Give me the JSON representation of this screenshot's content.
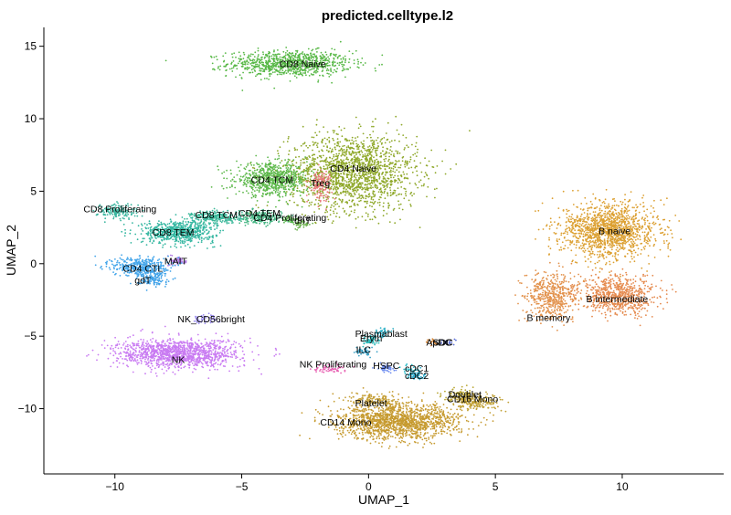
{
  "chart_data": {
    "type": "scatter",
    "title": "predicted.celltype.l2",
    "xlabel": "UMAP_1",
    "ylabel": "UMAP_2",
    "xlim": [
      -12.8,
      14
    ],
    "ylim": [
      -14.5,
      16.3
    ],
    "xticks": [
      -10,
      -5,
      0,
      5,
      10
    ],
    "xtick_labels": [
      "−10",
      "−5",
      "0",
      "5",
      "10"
    ],
    "yticks": [
      -10,
      -5,
      0,
      5,
      10,
      15
    ],
    "ytick_labels": [
      "−10",
      "−5",
      "0",
      "5",
      "10",
      "15"
    ],
    "grid": false,
    "legend": "none",
    "clusters": [
      {
        "name": "CD8 Naive",
        "x": -3.1,
        "y": 13.8,
        "sx": 2.2,
        "sy": 0.8,
        "n": 900,
        "color": "#58b847"
      },
      {
        "name": "CD4 Naive",
        "x": -0.6,
        "y": 6.3,
        "sx": 2.3,
        "sy": 2.4,
        "n": 1700,
        "color": "#8fa82a"
      },
      {
        "name": "CD4 TCM",
        "x": -3.8,
        "y": 5.8,
        "sx": 1.3,
        "sy": 1.0,
        "n": 700,
        "color": "#5db84b"
      },
      {
        "name": "Treg",
        "x": -1.9,
        "y": 5.5,
        "sx": 0.4,
        "sy": 0.9,
        "n": 140,
        "color": "#e8797a"
      },
      {
        "name": "CD8 Proliferating",
        "x": -9.9,
        "y": 3.6,
        "sx": 0.7,
        "sy": 0.5,
        "n": 160,
        "color": "#3cb6a0"
      },
      {
        "name": "CD8 TCM",
        "x": -6.0,
        "y": 3.2,
        "sx": 0.9,
        "sy": 0.4,
        "n": 240,
        "color": "#3bb89a"
      },
      {
        "name": "CD4 TEM",
        "x": -4.3,
        "y": 3.2,
        "sx": 0.8,
        "sy": 0.4,
        "n": 220,
        "color": "#44b582"
      },
      {
        "name": "CD4 Proliferating",
        "x": -3.1,
        "y": 3.0,
        "sx": 0.3,
        "sy": 0.3,
        "n": 40,
        "color": "#58b44d"
      },
      {
        "name": "dnT",
        "x": -2.6,
        "y": 2.7,
        "sx": 0.3,
        "sy": 0.3,
        "n": 40,
        "color": "#6ab04c"
      },
      {
        "name": "CD8 TEM",
        "x": -7.5,
        "y": 2.2,
        "sx": 1.3,
        "sy": 0.7,
        "n": 650,
        "color": "#33b6a0"
      },
      {
        "name": "MAIT",
        "x": -7.5,
        "y": 0.2,
        "sx": 0.3,
        "sy": 0.3,
        "n": 60,
        "color": "#b47ee6"
      },
      {
        "name": "CD4 CTL",
        "x": -9.0,
        "y": -0.2,
        "sx": 1.0,
        "sy": 0.6,
        "n": 400,
        "color": "#45a6ea"
      },
      {
        "name": "gdT",
        "x": -8.5,
        "y": -1.0,
        "sx": 0.6,
        "sy": 0.5,
        "n": 120,
        "color": "#3ea1e8"
      },
      {
        "name": "NK_CD56bright",
        "x": -6.5,
        "y": -3.8,
        "sx": 0.5,
        "sy": 0.3,
        "n": 50,
        "color": "#9b8df0"
      },
      {
        "name": "NK",
        "x": -7.5,
        "y": -6.2,
        "sx": 2.2,
        "sy": 0.9,
        "n": 1300,
        "color": "#c97bf2"
      },
      {
        "name": "Plasmablast",
        "x": 0.5,
        "y": -4.8,
        "sx": 0.3,
        "sy": 0.3,
        "n": 50,
        "color": "#35b3c9"
      },
      {
        "name": "Eryth",
        "x": 0.1,
        "y": -5.3,
        "sx": 0.3,
        "sy": 0.3,
        "n": 50,
        "color": "#27b8b8"
      },
      {
        "name": "ILC",
        "x": -0.2,
        "y": -6.1,
        "sx": 0.3,
        "sy": 0.3,
        "n": 40,
        "color": "#3ba2c6"
      },
      {
        "name": "ASDC",
        "x": 2.5,
        "y": -5.4,
        "sx": 0.2,
        "sy": 0.2,
        "n": 20,
        "color": "#d27f2d"
      },
      {
        "name": "pDC",
        "x": 3.1,
        "y": -5.4,
        "sx": 0.2,
        "sy": 0.2,
        "n": 20,
        "color": "#5a6fd8"
      },
      {
        "name": "NK Proliferating",
        "x": -1.5,
        "y": -7.2,
        "sx": 0.6,
        "sy": 0.3,
        "n": 60,
        "color": "#e862b3"
      },
      {
        "name": "HSPC",
        "x": 0.7,
        "y": -7.2,
        "sx": 0.3,
        "sy": 0.3,
        "n": 50,
        "color": "#6d8cf0"
      },
      {
        "name": "cDC1",
        "x": 1.7,
        "y": -7.3,
        "sx": 0.3,
        "sy": 0.3,
        "n": 30,
        "color": "#1fb7c4"
      },
      {
        "name": "cDC2",
        "x": 1.9,
        "y": -7.7,
        "sx": 0.3,
        "sy": 0.3,
        "n": 50,
        "color": "#30aed0"
      },
      {
        "name": "Platelet",
        "x": 0.2,
        "y": -9.4,
        "sx": 1.0,
        "sy": 0.4,
        "n": 160,
        "color": "#c6a13a"
      },
      {
        "name": "Doublet",
        "x": 3.6,
        "y": -9.0,
        "sx": 0.6,
        "sy": 0.4,
        "n": 80,
        "color": "#b8a530"
      },
      {
        "name": "CD16 Mono",
        "x": 4.2,
        "y": -9.5,
        "sx": 0.9,
        "sy": 0.5,
        "n": 220,
        "color": "#c1a136"
      },
      {
        "name": "CD14 Mono",
        "x": 1.2,
        "y": -10.9,
        "sx": 2.2,
        "sy": 1.1,
        "n": 1500,
        "color": "#c69a2f"
      },
      {
        "name": "B naive",
        "x": 9.5,
        "y": 2.3,
        "sx": 1.7,
        "sy": 1.7,
        "n": 1400,
        "color": "#dca032"
      },
      {
        "name": "B intermediate",
        "x": 9.8,
        "y": -2.2,
        "sx": 1.4,
        "sy": 1.2,
        "n": 700,
        "color": "#e58a4e"
      },
      {
        "name": "B memory",
        "x": 7.2,
        "y": -2.2,
        "sx": 0.9,
        "sy": 1.5,
        "n": 500,
        "color": "#e2914b"
      }
    ],
    "labels": [
      {
        "text": "CD8 Naive",
        "x": -2.6,
        "y": 13.8
      },
      {
        "text": "CD4 Naive",
        "x": -0.6,
        "y": 6.6
      },
      {
        "text": "CD4 TCM",
        "x": -3.8,
        "y": 5.8
      },
      {
        "text": "Treg",
        "x": -1.9,
        "y": 5.6
      },
      {
        "text": "CD8 Proliferating",
        "x": -9.8,
        "y": 3.8
      },
      {
        "text": "CD8 TCM",
        "x": -6.0,
        "y": 3.4
      },
      {
        "text": "CD4 TEM",
        "x": -4.3,
        "y": 3.5
      },
      {
        "text": "CD4 Proliferating",
        "x": -3.1,
        "y": 3.2
      },
      {
        "text": "dnT",
        "x": -2.6,
        "y": 3.0
      },
      {
        "text": "CD8 TEM",
        "x": -7.7,
        "y": 2.2
      },
      {
        "text": "MAIT",
        "x": -7.6,
        "y": 0.2
      },
      {
        "text": "CD4 CTL",
        "x": -8.9,
        "y": -0.3
      },
      {
        "text": "gdT",
        "x": -8.9,
        "y": -1.1
      },
      {
        "text": "NK_CD56bright",
        "x": -6.2,
        "y": -3.8
      },
      {
        "text": "NK",
        "x": -7.5,
        "y": -6.6
      },
      {
        "text": "Plasmablast",
        "x": 0.5,
        "y": -4.8
      },
      {
        "text": "Eryth",
        "x": 0.1,
        "y": -5.1
      },
      {
        "text": "ASDC",
        "x": 2.8,
        "y": -5.4
      },
      {
        "text": "pDC",
        "x": 2.9,
        "y": -5.4
      },
      {
        "text": "ILC",
        "x": -0.2,
        "y": -5.9
      },
      {
        "text": "NK Proliferating",
        "x": -1.4,
        "y": -6.9
      },
      {
        "text": "HSPC",
        "x": 0.7,
        "y": -7.0
      },
      {
        "text": "cDC1",
        "x": 1.9,
        "y": -7.2
      },
      {
        "text": "cDC2",
        "x": 1.9,
        "y": -7.7
      },
      {
        "text": "Platelet",
        "x": 0.1,
        "y": -9.6
      },
      {
        "text": "Doublet",
        "x": 3.8,
        "y": -9.0
      },
      {
        "text": "CD16 Mono",
        "x": 4.1,
        "y": -9.3
      },
      {
        "text": "CD14 Mono",
        "x": -0.9,
        "y": -10.9
      },
      {
        "text": "B naive",
        "x": 9.7,
        "y": 2.3
      },
      {
        "text": "B intermediate",
        "x": 9.8,
        "y": -2.4
      },
      {
        "text": "B memory",
        "x": 7.1,
        "y": -3.7
      }
    ]
  }
}
